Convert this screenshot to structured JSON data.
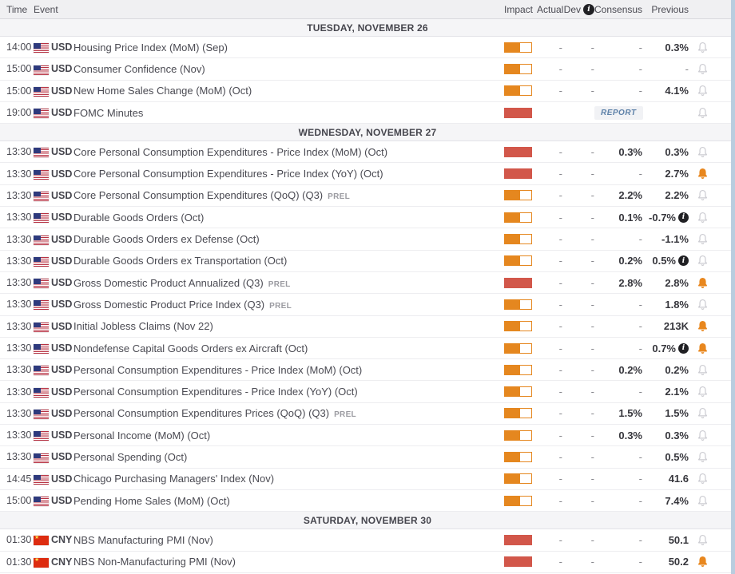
{
  "table": {
    "columns": {
      "time": "Time",
      "event": "Event",
      "impact": "Impact",
      "actual": "Actual",
      "dev": "Dev",
      "consensus": "Consensus",
      "previous": "Previous"
    },
    "report_label": "REPORT",
    "prel_label": "PREL"
  },
  "colors": {
    "impact_medium": "#e5871f",
    "impact_high": "#d2574a",
    "bell_inactive": "#cbcbd1",
    "bell_active": "#e8871e",
    "header_bg": "#f0f0f2",
    "section_bg": "#f5f5f7",
    "report_text": "#5d81a8",
    "value_text": "#36363c"
  },
  "sections": [
    {
      "title": "TUESDAY, NOVEMBER 26",
      "rows": [
        {
          "time": "14:00",
          "currency": "USD",
          "country": "us",
          "event": "Housing Price Index (MoM) (Sep)",
          "suffix": "",
          "impact": "medium",
          "actual": "-",
          "dev": "-",
          "consensus": "-",
          "previous": "0.3%",
          "previous_info": false,
          "report": false,
          "alert": false
        },
        {
          "time": "15:00",
          "currency": "USD",
          "country": "us",
          "event": "Consumer Confidence (Nov)",
          "suffix": "",
          "impact": "medium",
          "actual": "-",
          "dev": "-",
          "consensus": "-",
          "previous": "-",
          "previous_info": false,
          "report": false,
          "alert": false
        },
        {
          "time": "15:00",
          "currency": "USD",
          "country": "us",
          "event": "New Home Sales Change (MoM) (Oct)",
          "suffix": "",
          "impact": "medium",
          "actual": "-",
          "dev": "-",
          "consensus": "-",
          "previous": "4.1%",
          "previous_info": false,
          "report": false,
          "alert": false
        },
        {
          "time": "19:00",
          "currency": "USD",
          "country": "us",
          "event": "FOMC Minutes",
          "suffix": "",
          "impact": "high",
          "actual": "",
          "dev": "",
          "consensus": "",
          "previous": "",
          "previous_info": false,
          "report": true,
          "alert": false
        }
      ]
    },
    {
      "title": "WEDNESDAY, NOVEMBER 27",
      "rows": [
        {
          "time": "13:30",
          "currency": "USD",
          "country": "us",
          "event": "Core Personal Consumption Expenditures - Price Index (MoM) (Oct)",
          "suffix": "",
          "impact": "high",
          "actual": "-",
          "dev": "-",
          "consensus": "0.3%",
          "previous": "0.3%",
          "previous_info": false,
          "report": false,
          "alert": false
        },
        {
          "time": "13:30",
          "currency": "USD",
          "country": "us",
          "event": "Core Personal Consumption Expenditures - Price Index (YoY) (Oct)",
          "suffix": "",
          "impact": "high",
          "actual": "-",
          "dev": "-",
          "consensus": "-",
          "previous": "2.7%",
          "previous_info": false,
          "report": false,
          "alert": true
        },
        {
          "time": "13:30",
          "currency": "USD",
          "country": "us",
          "event": "Core Personal Consumption Expenditures (QoQ) (Q3)",
          "suffix": "PREL",
          "impact": "medium",
          "actual": "-",
          "dev": "-",
          "consensus": "2.2%",
          "previous": "2.2%",
          "previous_info": false,
          "report": false,
          "alert": false
        },
        {
          "time": "13:30",
          "currency": "USD",
          "country": "us",
          "event": "Durable Goods Orders (Oct)",
          "suffix": "",
          "impact": "medium",
          "actual": "-",
          "dev": "-",
          "consensus": "0.1%",
          "previous": "-0.7%",
          "previous_info": true,
          "report": false,
          "alert": false
        },
        {
          "time": "13:30",
          "currency": "USD",
          "country": "us",
          "event": "Durable Goods Orders ex Defense (Oct)",
          "suffix": "",
          "impact": "medium",
          "actual": "-",
          "dev": "-",
          "consensus": "-",
          "previous": "-1.1%",
          "previous_info": false,
          "report": false,
          "alert": false
        },
        {
          "time": "13:30",
          "currency": "USD",
          "country": "us",
          "event": "Durable Goods Orders ex Transportation (Oct)",
          "suffix": "",
          "impact": "medium",
          "actual": "-",
          "dev": "-",
          "consensus": "0.2%",
          "previous": "0.5%",
          "previous_info": true,
          "report": false,
          "alert": false
        },
        {
          "time": "13:30",
          "currency": "USD",
          "country": "us",
          "event": "Gross Domestic Product Annualized (Q3)",
          "suffix": "PREL",
          "impact": "high",
          "actual": "-",
          "dev": "-",
          "consensus": "2.8%",
          "previous": "2.8%",
          "previous_info": false,
          "report": false,
          "alert": true
        },
        {
          "time": "13:30",
          "currency": "USD",
          "country": "us",
          "event": "Gross Domestic Product Price Index (Q3)",
          "suffix": "PREL",
          "impact": "medium",
          "actual": "-",
          "dev": "-",
          "consensus": "-",
          "previous": "1.8%",
          "previous_info": false,
          "report": false,
          "alert": false
        },
        {
          "time": "13:30",
          "currency": "USD",
          "country": "us",
          "event": "Initial Jobless Claims (Nov 22)",
          "suffix": "",
          "impact": "medium",
          "actual": "-",
          "dev": "-",
          "consensus": "-",
          "previous": "213K",
          "previous_info": false,
          "report": false,
          "alert": true
        },
        {
          "time": "13:30",
          "currency": "USD",
          "country": "us",
          "event": "Nondefense Capital Goods Orders ex Aircraft (Oct)",
          "suffix": "",
          "impact": "medium",
          "actual": "-",
          "dev": "-",
          "consensus": "-",
          "previous": "0.7%",
          "previous_info": true,
          "report": false,
          "alert": true
        },
        {
          "time": "13:30",
          "currency": "USD",
          "country": "us",
          "event": "Personal Consumption Expenditures - Price Index (MoM) (Oct)",
          "suffix": "",
          "impact": "medium",
          "actual": "-",
          "dev": "-",
          "consensus": "0.2%",
          "previous": "0.2%",
          "previous_info": false,
          "report": false,
          "alert": false
        },
        {
          "time": "13:30",
          "currency": "USD",
          "country": "us",
          "event": "Personal Consumption Expenditures - Price Index (YoY) (Oct)",
          "suffix": "",
          "impact": "medium",
          "actual": "-",
          "dev": "-",
          "consensus": "-",
          "previous": "2.1%",
          "previous_info": false,
          "report": false,
          "alert": false
        },
        {
          "time": "13:30",
          "currency": "USD",
          "country": "us",
          "event": "Personal Consumption Expenditures Prices (QoQ) (Q3)",
          "suffix": "PREL",
          "impact": "medium",
          "actual": "-",
          "dev": "-",
          "consensus": "1.5%",
          "previous": "1.5%",
          "previous_info": false,
          "report": false,
          "alert": false
        },
        {
          "time": "13:30",
          "currency": "USD",
          "country": "us",
          "event": "Personal Income (MoM) (Oct)",
          "suffix": "",
          "impact": "medium",
          "actual": "-",
          "dev": "-",
          "consensus": "0.3%",
          "previous": "0.3%",
          "previous_info": false,
          "report": false,
          "alert": false
        },
        {
          "time": "13:30",
          "currency": "USD",
          "country": "us",
          "event": "Personal Spending (Oct)",
          "suffix": "",
          "impact": "medium",
          "actual": "-",
          "dev": "-",
          "consensus": "-",
          "previous": "0.5%",
          "previous_info": false,
          "report": false,
          "alert": false
        },
        {
          "time": "14:45",
          "currency": "USD",
          "country": "us",
          "event": "Chicago Purchasing Managers' Index (Nov)",
          "suffix": "",
          "impact": "medium",
          "actual": "-",
          "dev": "-",
          "consensus": "-",
          "previous": "41.6",
          "previous_info": false,
          "report": false,
          "alert": false
        },
        {
          "time": "15:00",
          "currency": "USD",
          "country": "us",
          "event": "Pending Home Sales (MoM) (Oct)",
          "suffix": "",
          "impact": "medium",
          "actual": "-",
          "dev": "-",
          "consensus": "-",
          "previous": "7.4%",
          "previous_info": false,
          "report": false,
          "alert": false
        }
      ]
    },
    {
      "title": "SATURDAY, NOVEMBER 30",
      "rows": [
        {
          "time": "01:30",
          "currency": "CNY",
          "country": "cn",
          "event": "NBS Manufacturing PMI (Nov)",
          "suffix": "",
          "impact": "high",
          "actual": "-",
          "dev": "-",
          "consensus": "-",
          "previous": "50.1",
          "previous_info": false,
          "report": false,
          "alert": false
        },
        {
          "time": "01:30",
          "currency": "CNY",
          "country": "cn",
          "event": "NBS Non-Manufacturing PMI (Nov)",
          "suffix": "",
          "impact": "high",
          "actual": "-",
          "dev": "-",
          "consensus": "-",
          "previous": "50.2",
          "previous_info": false,
          "report": false,
          "alert": true
        }
      ]
    }
  ]
}
